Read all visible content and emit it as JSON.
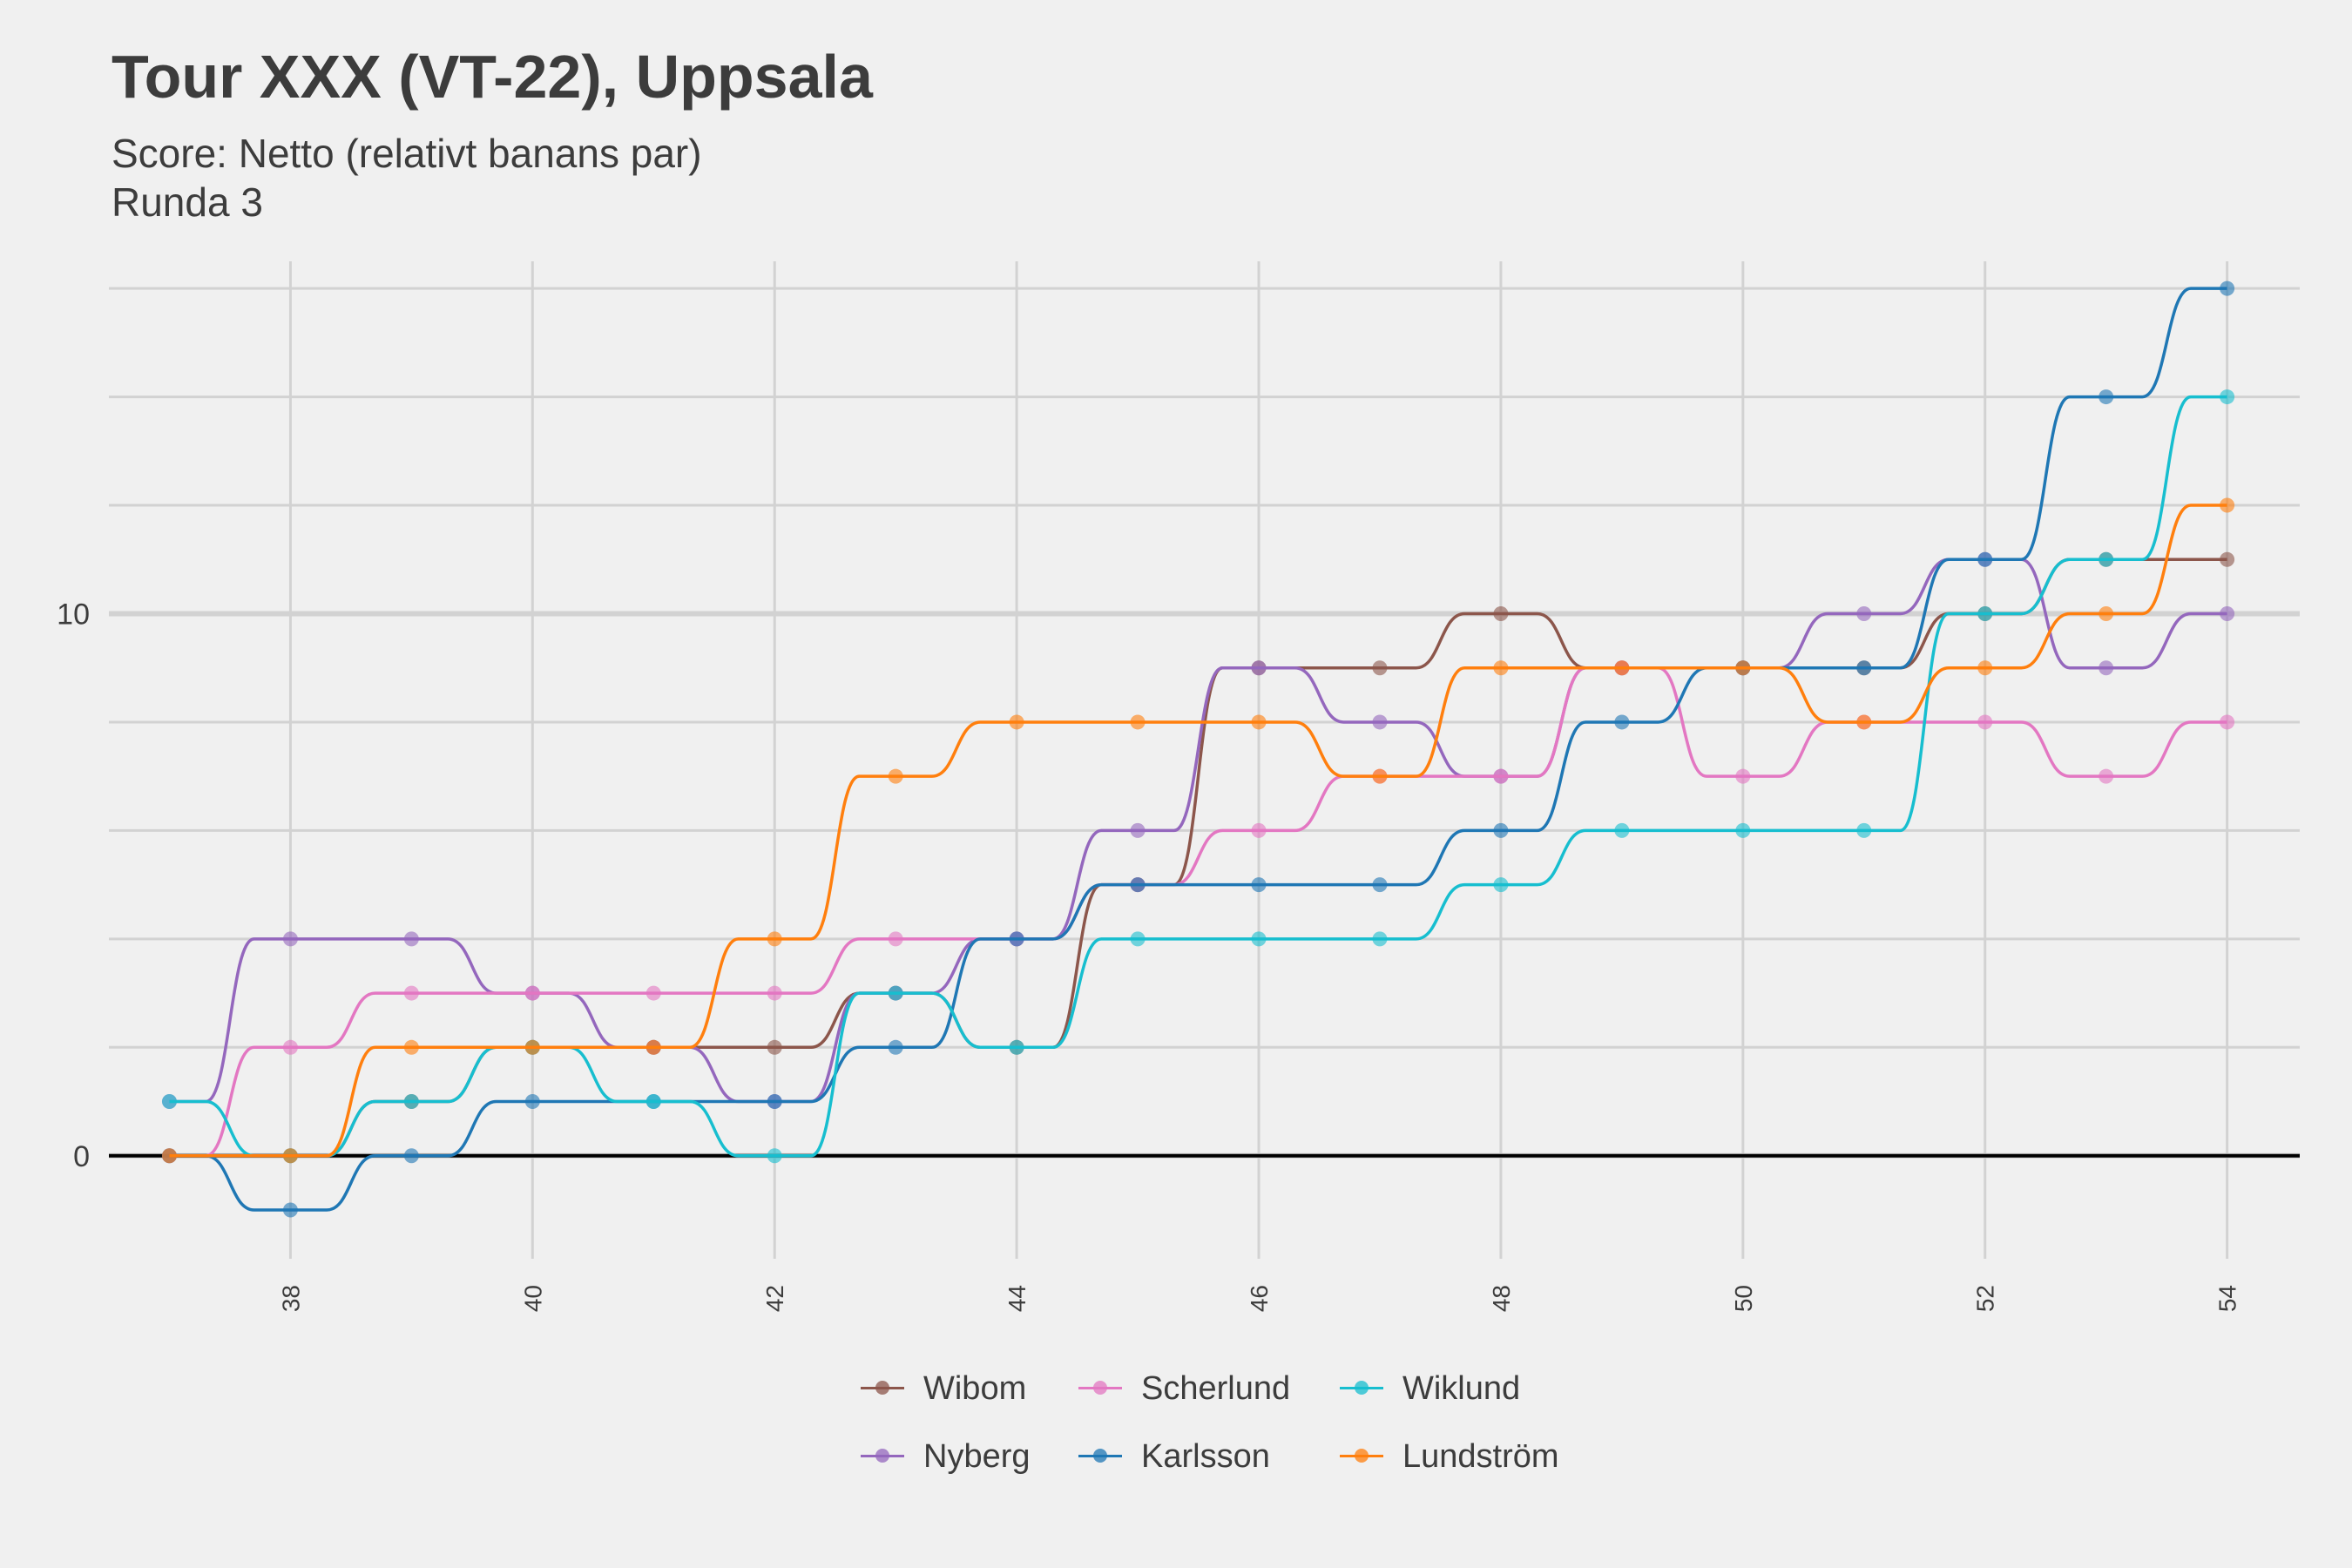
{
  "chart_data": {
    "type": "line",
    "title": "Tour XXX (VT-22), Uppsala",
    "subtitle": [
      "Score: Netto (relativt banans par)",
      "Runda 3"
    ],
    "xlabel": "",
    "ylabel": "",
    "x": [
      37,
      38,
      39,
      40,
      41,
      42,
      43,
      44,
      45,
      46,
      47,
      48,
      49,
      50,
      51,
      52,
      53,
      54
    ],
    "x_tick_labels": [
      "38",
      "40",
      "42",
      "44",
      "46",
      "48",
      "50",
      "52",
      "54"
    ],
    "y_tick_labels": [
      "0",
      "10"
    ],
    "xlim": [
      36.5,
      54.6
    ],
    "ylim": [
      -1.9,
      16.5
    ],
    "grid": true,
    "legend_position": "bottom",
    "series": [
      {
        "name": "Wibom",
        "color": "#8c564b",
        "values": [
          0,
          0,
          1,
          2,
          2,
          2,
          3,
          2,
          5,
          9,
          9,
          10,
          9,
          9,
          9,
          10,
          11,
          11
        ]
      },
      {
        "name": "Nyberg",
        "color": "#9467bd",
        "values": [
          1,
          4,
          4,
          3,
          2,
          1,
          3,
          4,
          6,
          9,
          8,
          7,
          9,
          9,
          10,
          11,
          9,
          10
        ]
      },
      {
        "name": "Scherlund",
        "color": "#e377c2",
        "values": [
          0,
          2,
          3,
          3,
          3,
          3,
          4,
          4,
          5,
          6,
          7,
          7,
          9,
          7,
          8,
          8,
          7,
          8
        ]
      },
      {
        "name": "Karlsson",
        "color": "#1f77b4",
        "values": [
          0,
          -1,
          0,
          1,
          1,
          1,
          2,
          4,
          5,
          5,
          5,
          6,
          8,
          9,
          9,
          11,
          14,
          16
        ]
      },
      {
        "name": "Wiklund",
        "color": "#17becf",
        "values": [
          1,
          0,
          1,
          2,
          1,
          0,
          3,
          2,
          4,
          4,
          4,
          5,
          6,
          6,
          6,
          10,
          11,
          14
        ]
      },
      {
        "name": "Lundström",
        "color": "#ff7f0e",
        "values": [
          0,
          0,
          2,
          2,
          2,
          4,
          7,
          8,
          8,
          8,
          7,
          9,
          9,
          9,
          8,
          9,
          10,
          12
        ]
      }
    ],
    "legend_order": [
      "Wibom",
      "Scherlund",
      "Wiklund",
      "Nyberg",
      "Karlsson",
      "Lundström"
    ]
  }
}
